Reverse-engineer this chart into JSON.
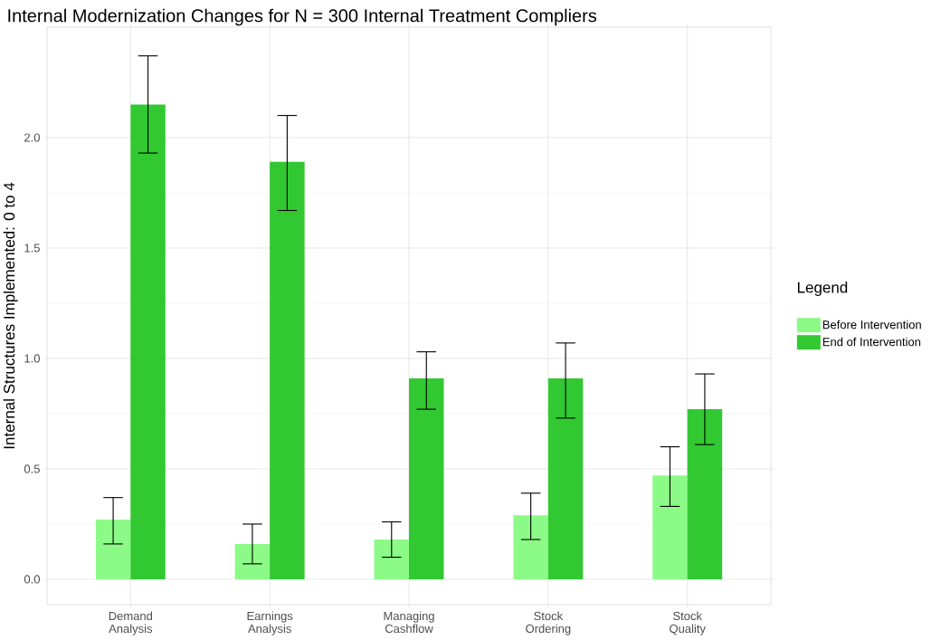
{
  "chart_data": {
    "type": "bar",
    "title": "Internal Modernization Changes for N = 300 Internal Treatment Compliers",
    "ylabel": "Internal Structures Implemented: 0 to 4",
    "legend_title": "Legend",
    "categories": [
      "Demand Analysis",
      "Earnings Analysis",
      "Managing Cashflow",
      "Stock Ordering",
      "Stock Quality"
    ],
    "series": [
      {
        "name": "Before Intervention",
        "color": "#8cfa87",
        "values": [
          0.27,
          0.16,
          0.18,
          0.29,
          0.47
        ],
        "errors": [
          [
            0.16,
            0.37
          ],
          [
            0.07,
            0.25
          ],
          [
            0.1,
            0.26
          ],
          [
            0.18,
            0.39
          ],
          [
            0.33,
            0.6
          ]
        ]
      },
      {
        "name": "End of Intervention",
        "color": "#32c832",
        "values": [
          2.15,
          1.89,
          0.91,
          0.91,
          0.77
        ],
        "errors": [
          [
            1.93,
            2.37
          ],
          [
            1.67,
            2.1
          ],
          [
            0.77,
            1.03
          ],
          [
            0.73,
            1.07
          ],
          [
            0.61,
            0.93
          ]
        ]
      }
    ],
    "ylim": [
      -0.115,
      2.5
    ],
    "yticks": [
      {
        "value": 0,
        "label": "0.0"
      },
      {
        "value": 0.5,
        "label": "0.5"
      },
      {
        "value": 1,
        "label": "1.0"
      },
      {
        "value": 1.5,
        "label": "1.5"
      },
      {
        "value": 2,
        "label": "2.0"
      }
    ],
    "grid": true,
    "legend": "right"
  }
}
